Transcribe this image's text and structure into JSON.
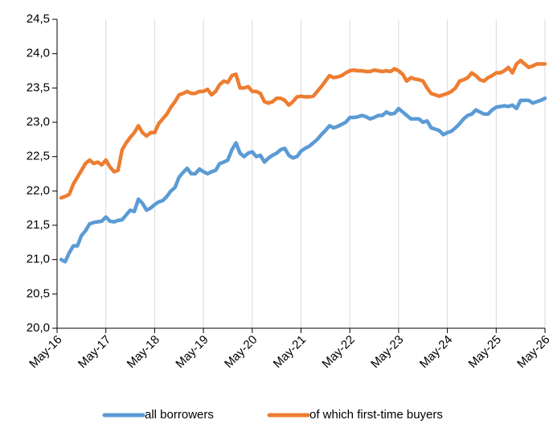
{
  "chart_data": {
    "type": "line",
    "categories": [
      "May-16",
      null,
      null,
      null,
      null,
      null,
      null,
      null,
      null,
      null,
      null,
      null,
      "May-17",
      null,
      null,
      null,
      null,
      null,
      null,
      null,
      null,
      null,
      null,
      null,
      "May-18",
      null,
      null,
      null,
      null,
      null,
      null,
      null,
      null,
      null,
      null,
      null,
      "May-19",
      null,
      null,
      null,
      null,
      null,
      null,
      null,
      null,
      null,
      null,
      null,
      "May-20",
      null,
      null,
      null,
      null,
      null,
      null,
      null,
      null,
      null,
      null,
      null,
      "May-21",
      null,
      null,
      null,
      null,
      null,
      null,
      null,
      null,
      null,
      null,
      null,
      "May-22",
      null,
      null,
      null,
      null,
      null,
      null,
      null,
      null,
      null,
      null,
      null,
      "May-23",
      null,
      null,
      null,
      null,
      null,
      null,
      null,
      null,
      null,
      null,
      null,
      "May-24",
      null,
      null,
      null,
      null,
      null,
      null,
      null,
      null,
      null,
      null,
      null,
      "May-25",
      null,
      null,
      null,
      null,
      null,
      null,
      null,
      null,
      null,
      null,
      null,
      "May-26"
    ],
    "series": [
      {
        "name": "all borrowers",
        "color": "#5b9bd5",
        "values": [
          null,
          21.0,
          20.97,
          21.1,
          21.2,
          21.2,
          21.35,
          21.42,
          21.52,
          21.54,
          21.55,
          21.56,
          21.62,
          21.56,
          21.55,
          21.57,
          21.58,
          21.65,
          21.72,
          21.7,
          21.88,
          21.82,
          21.72,
          21.75,
          21.8,
          21.84,
          21.86,
          21.92,
          22.0,
          22.05,
          22.2,
          22.27,
          22.33,
          22.25,
          22.25,
          22.32,
          22.28,
          22.25,
          22.28,
          22.3,
          22.4,
          22.42,
          22.45,
          22.6,
          22.7,
          22.55,
          22.5,
          22.55,
          22.57,
          22.5,
          22.52,
          22.42,
          22.48,
          22.52,
          22.55,
          22.6,
          22.62,
          22.52,
          22.48,
          22.5,
          22.58,
          22.62,
          22.65,
          22.7,
          22.75,
          22.82,
          22.88,
          22.95,
          22.92,
          22.94,
          22.97,
          23.0,
          23.07,
          23.07,
          23.08,
          23.1,
          23.08,
          23.05,
          23.07,
          23.1,
          23.1,
          23.15,
          23.12,
          23.13,
          23.2,
          23.15,
          23.1,
          23.05,
          23.05,
          23.05,
          23.0,
          23.02,
          22.92,
          22.9,
          22.88,
          22.82,
          22.85,
          22.87,
          22.92,
          22.98,
          23.05,
          23.1,
          23.12,
          23.18,
          23.15,
          23.12,
          23.12,
          23.18,
          23.22,
          23.23,
          23.24,
          23.23,
          23.25,
          23.2,
          23.32,
          23.32,
          23.32,
          23.28,
          23.3,
          23.32,
          23.35
        ]
      },
      {
        "name": "of which first-time buyers",
        "color": "#ed7d31",
        "values": [
          null,
          21.9,
          21.92,
          21.95,
          22.1,
          22.2,
          22.3,
          22.4,
          22.45,
          22.4,
          22.42,
          22.38,
          22.45,
          22.35,
          22.28,
          22.3,
          22.6,
          22.7,
          22.78,
          22.85,
          22.95,
          22.85,
          22.8,
          22.85,
          22.85,
          22.98,
          23.05,
          23.12,
          23.22,
          23.3,
          23.4,
          23.42,
          23.45,
          23.42,
          23.42,
          23.45,
          23.45,
          23.48,
          23.4,
          23.45,
          23.55,
          23.6,
          23.58,
          23.68,
          23.7,
          23.5,
          23.5,
          23.52,
          23.45,
          23.45,
          23.42,
          23.3,
          23.28,
          23.3,
          23.35,
          23.35,
          23.32,
          23.25,
          23.3,
          23.37,
          23.38,
          23.37,
          23.37,
          23.38,
          23.45,
          23.52,
          23.6,
          23.68,
          23.65,
          23.66,
          23.68,
          23.72,
          23.75,
          23.76,
          23.75,
          23.75,
          23.74,
          23.74,
          23.76,
          23.75,
          23.74,
          23.75,
          23.74,
          23.78,
          23.75,
          23.7,
          23.6,
          23.65,
          23.63,
          23.62,
          23.6,
          23.5,
          23.42,
          23.4,
          23.38,
          23.4,
          23.42,
          23.45,
          23.5,
          23.6,
          23.62,
          23.65,
          23.72,
          23.68,
          23.62,
          23.6,
          23.65,
          23.68,
          23.72,
          23.72,
          23.75,
          23.8,
          23.72,
          23.85,
          23.9,
          23.85,
          23.8,
          23.82,
          23.85,
          23.85,
          23.85
        ]
      }
    ],
    "ylim": [
      20,
      24.5
    ],
    "yticks": [
      {
        "value": 20,
        "label": "20,0"
      },
      {
        "value": 20.5,
        "label": "20,5"
      },
      {
        "value": 21,
        "label": "21,0"
      },
      {
        "value": 21.5,
        "label": "21,5"
      },
      {
        "value": 22,
        "label": "22,0"
      },
      {
        "value": 22.5,
        "label": "22,5"
      },
      {
        "value": 23,
        "label": "23,0"
      },
      {
        "value": 23.5,
        "label": "23,5"
      },
      {
        "value": 24,
        "label": "24,0"
      },
      {
        "value": 24.5,
        "label": "24,5"
      }
    ],
    "grid": true,
    "legend": "bottom"
  }
}
